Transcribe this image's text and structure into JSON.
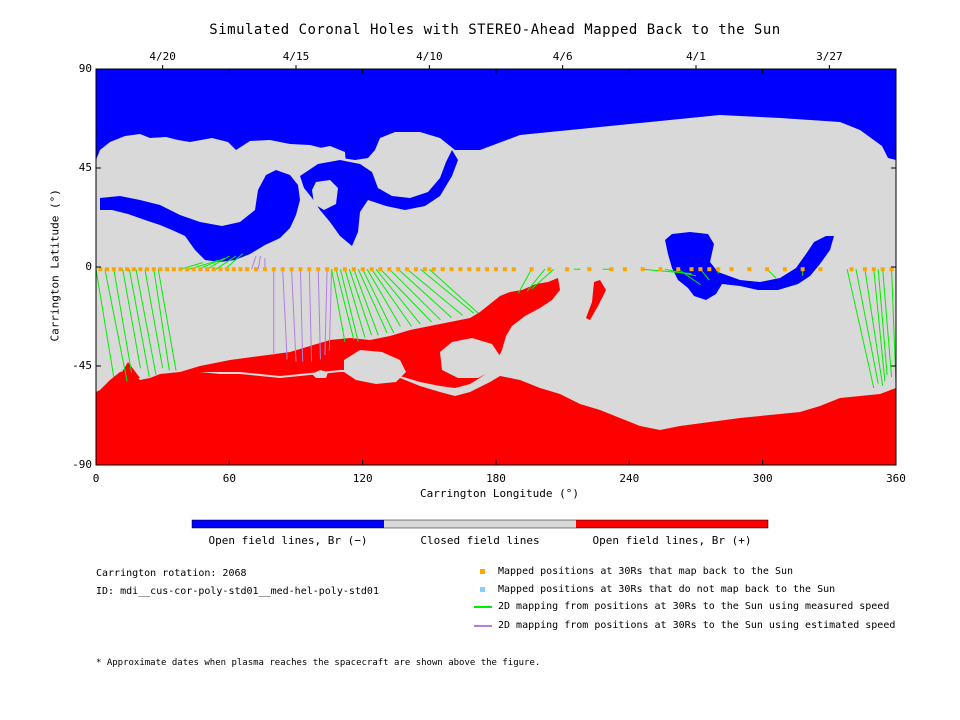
{
  "chart_data": {
    "type": "map",
    "title": "Simulated Coronal Holes with STEREO-Ahead Mapped Back to the Sun",
    "xlabel": "Carrington Longitude (°)",
    "ylabel": "Carrington Latitude (°)",
    "xlim": [
      0,
      360
    ],
    "ylim": [
      -90,
      90
    ],
    "xticks": [
      0,
      60,
      120,
      180,
      240,
      300,
      360
    ],
    "yticks": [
      -90,
      -45,
      0,
      45,
      90
    ],
    "top_axis": {
      "labels": [
        "4/20",
        "4/15",
        "4/10",
        "4/6",
        "4/1",
        "3/27"
      ],
      "longitudes": [
        30,
        90,
        150,
        210,
        270,
        330
      ]
    },
    "colors": {
      "open_negative": "#0000ff",
      "closed": "#d9d9d9",
      "open_positive": "#ff0000",
      "mapped": "#ffa500",
      "unmapped": "#87cefa",
      "measured": "#00ee00",
      "estimated": "#b07fe0"
    },
    "colorbar": [
      {
        "label": "Open field lines, Br (−)",
        "color": "#0000ff"
      },
      {
        "label": "Closed field lines",
        "color": "#d9d9d9"
      },
      {
        "label": "Open field lines, Br (+)",
        "color": "#ff0000"
      }
    ],
    "mapped_points": {
      "lon": [
        2,
        5,
        8,
        11,
        14,
        17,
        20,
        23,
        26,
        29,
        32,
        35,
        38,
        41,
        44,
        47,
        50,
        53,
        56,
        59,
        62,
        65,
        68,
        72,
        76,
        80,
        84,
        88,
        92,
        96,
        100,
        104,
        108,
        112,
        116,
        120,
        124,
        128,
        132,
        136,
        140,
        144,
        148,
        152,
        156,
        160,
        164,
        168,
        172,
        176,
        180,
        184,
        188,
        196,
        204,
        212,
        222,
        232,
        238,
        246,
        254,
        262,
        268,
        272,
        276,
        280,
        286,
        294,
        302,
        310,
        318,
        326,
        340,
        346,
        350,
        354,
        358
      ],
      "lat": [
        -1,
        -1,
        -1,
        -1,
        -1,
        -1,
        -1,
        -1,
        -1,
        -1,
        -1,
        -1,
        -1,
        -1,
        -1,
        -1,
        -1,
        -1,
        -1,
        -1,
        -1,
        -1,
        -1,
        -1,
        -1,
        -1,
        -1,
        -1,
        -1,
        -1,
        -1,
        -1,
        -1,
        -1,
        -1,
        -1,
        -1,
        -1,
        -1,
        -1,
        -1,
        -1,
        -1,
        -1,
        -1,
        -1,
        -1,
        -1,
        -1,
        -1,
        -1,
        -1,
        -1,
        -1,
        -1,
        -1,
        -1,
        -1,
        -1,
        -1,
        -1,
        -1,
        -1,
        -1,
        -1,
        -1,
        -1,
        -1,
        -1,
        -1,
        -1,
        -1,
        -1,
        -1,
        -1,
        -1,
        -1
      ]
    },
    "measured_lines": [
      {
        "from": [
          0,
          -1
        ],
        "to": [
          8,
          -50
        ]
      },
      {
        "from": [
          4,
          -1
        ],
        "to": [
          14,
          -52
        ]
      },
      {
        "from": [
          8,
          -1
        ],
        "to": [
          16,
          -48
        ]
      },
      {
        "from": [
          12,
          -1
        ],
        "to": [
          20,
          -46
        ]
      },
      {
        "from": [
          15,
          -1
        ],
        "to": [
          24,
          -50
        ]
      },
      {
        "from": [
          18,
          -1
        ],
        "to": [
          27,
          -49
        ]
      },
      {
        "from": [
          22,
          -1
        ],
        "to": [
          30,
          -46
        ]
      },
      {
        "from": [
          26,
          -1
        ],
        "to": [
          33,
          -47
        ]
      },
      {
        "from": [
          28,
          -1
        ],
        "to": [
          36,
          -47
        ]
      },
      {
        "from": [
          38,
          -1
        ],
        "to": [
          48,
          2
        ]
      },
      {
        "from": [
          42,
          -1
        ],
        "to": [
          55,
          3
        ]
      },
      {
        "from": [
          46,
          -1
        ],
        "to": [
          58,
          4
        ]
      },
      {
        "from": [
          50,
          -1
        ],
        "to": [
          60,
          5
        ]
      },
      {
        "from": [
          54,
          -1
        ],
        "to": [
          63,
          5
        ]
      },
      {
        "from": [
          58,
          -1
        ],
        "to": [
          66,
          6
        ]
      },
      {
        "from": [
          106,
          -1
        ],
        "to": [
          112,
          -34
        ]
      },
      {
        "from": [
          108,
          -1
        ],
        "to": [
          116,
          -33
        ]
      },
      {
        "from": [
          110,
          -1
        ],
        "to": [
          118,
          -34
        ]
      },
      {
        "from": [
          112,
          -1
        ],
        "to": [
          121,
          -32
        ]
      },
      {
        "from": [
          114,
          -1
        ],
        "to": [
          124,
          -31
        ]
      },
      {
        "from": [
          116,
          -1
        ],
        "to": [
          127,
          -31
        ]
      },
      {
        "from": [
          118,
          -1
        ],
        "to": [
          131,
          -30
        ]
      },
      {
        "from": [
          120,
          -1
        ],
        "to": [
          134,
          -30
        ]
      },
      {
        "from": [
          122,
          -1
        ],
        "to": [
          137,
          -27
        ]
      },
      {
        "from": [
          124,
          -1
        ],
        "to": [
          142,
          -27
        ]
      },
      {
        "from": [
          126,
          -1
        ],
        "to": [
          146,
          -26
        ]
      },
      {
        "from": [
          128,
          -1
        ],
        "to": [
          151,
          -25
        ]
      },
      {
        "from": [
          132,
          -1
        ],
        "to": [
          155,
          -24
        ]
      },
      {
        "from": [
          136,
          -1
        ],
        "to": [
          160,
          -23
        ]
      },
      {
        "from": [
          140,
          -1
        ],
        "to": [
          165,
          -22
        ]
      },
      {
        "from": [
          146,
          -1
        ],
        "to": [
          170,
          -21
        ]
      },
      {
        "from": [
          150,
          -1
        ],
        "to": [
          172,
          -21
        ]
      },
      {
        "from": [
          196,
          -1
        ],
        "to": [
          190,
          -12
        ]
      },
      {
        "from": [
          202,
          -1
        ],
        "to": [
          194,
          -11
        ]
      },
      {
        "from": [
          206,
          -1
        ],
        "to": [
          196,
          -10
        ]
      },
      {
        "from": [
          218,
          -1
        ],
        "to": [
          215,
          -1
        ]
      },
      {
        "from": [
          232,
          -1
        ],
        "to": [
          228,
          -1
        ]
      },
      {
        "from": [
          246,
          -1
        ],
        "to": [
          268,
          -3
        ]
      },
      {
        "from": [
          256,
          -1
        ],
        "to": [
          270,
          -4
        ]
      },
      {
        "from": [
          262,
          -1
        ],
        "to": [
          272,
          -8
        ]
      },
      {
        "from": [
          272,
          -1
        ],
        "to": [
          276,
          -6
        ]
      },
      {
        "from": [
          280,
          -1
        ],
        "to": [
          280,
          -3
        ]
      },
      {
        "from": [
          302,
          -1
        ],
        "to": [
          306,
          -5
        ]
      },
      {
        "from": [
          318,
          -1
        ],
        "to": [
          318,
          -4
        ]
      },
      {
        "from": [
          338,
          -1
        ],
        "to": [
          350,
          -55
        ]
      },
      {
        "from": [
          342,
          -1
        ],
        "to": [
          352,
          -53
        ]
      },
      {
        "from": [
          346,
          -1
        ],
        "to": [
          354,
          -54
        ]
      },
      {
        "from": [
          350,
          -1
        ],
        "to": [
          355,
          -52
        ]
      },
      {
        "from": [
          352,
          -1
        ],
        "to": [
          356,
          -49
        ]
      },
      {
        "from": [
          354,
          -1
        ],
        "to": [
          358,
          -50
        ]
      },
      {
        "from": [
          358,
          -1
        ],
        "to": [
          360,
          -53
        ]
      }
    ],
    "estimated_lines": [
      {
        "from": [
          70,
          -1
        ],
        "to": [
          72,
          5
        ]
      },
      {
        "from": [
          73,
          -1
        ],
        "to": [
          74,
          5
        ]
      },
      {
        "from": [
          76,
          -1
        ],
        "to": [
          76,
          4
        ]
      },
      {
        "from": [
          80,
          -1
        ],
        "to": [
          80,
          -40
        ]
      },
      {
        "from": [
          84,
          -1
        ],
        "to": [
          86,
          -42
        ]
      },
      {
        "from": [
          88,
          -1
        ],
        "to": [
          90,
          -43
        ]
      },
      {
        "from": [
          92,
          -1
        ],
        "to": [
          93,
          -43
        ]
      },
      {
        "from": [
          96,
          -1
        ],
        "to": [
          97,
          -43
        ]
      },
      {
        "from": [
          100,
          -1
        ],
        "to": [
          101,
          -42
        ]
      },
      {
        "from": [
          104,
          -1
        ],
        "to": [
          103,
          -40
        ]
      },
      {
        "from": [
          106,
          -1
        ],
        "to": [
          105,
          -38
        ]
      }
    ]
  },
  "info": {
    "rotation": "Carrington rotation: 2068",
    "id": "ID: mdi__cus-cor-poly-std01__med-hel-poly-std01",
    "footnote": "* Approximate dates when plasma reaches the spacecraft are shown above the figure."
  },
  "legend": {
    "mapped": "Mapped positions at 30Rs that map back to the Sun",
    "unmapped": "Mapped positions at 30Rs that do not map back to the Sun",
    "measured": "2D mapping from positions at 30Rs to the Sun using measured speed",
    "estimated": "2D mapping from positions at 30Rs to the Sun using estimated speed"
  }
}
